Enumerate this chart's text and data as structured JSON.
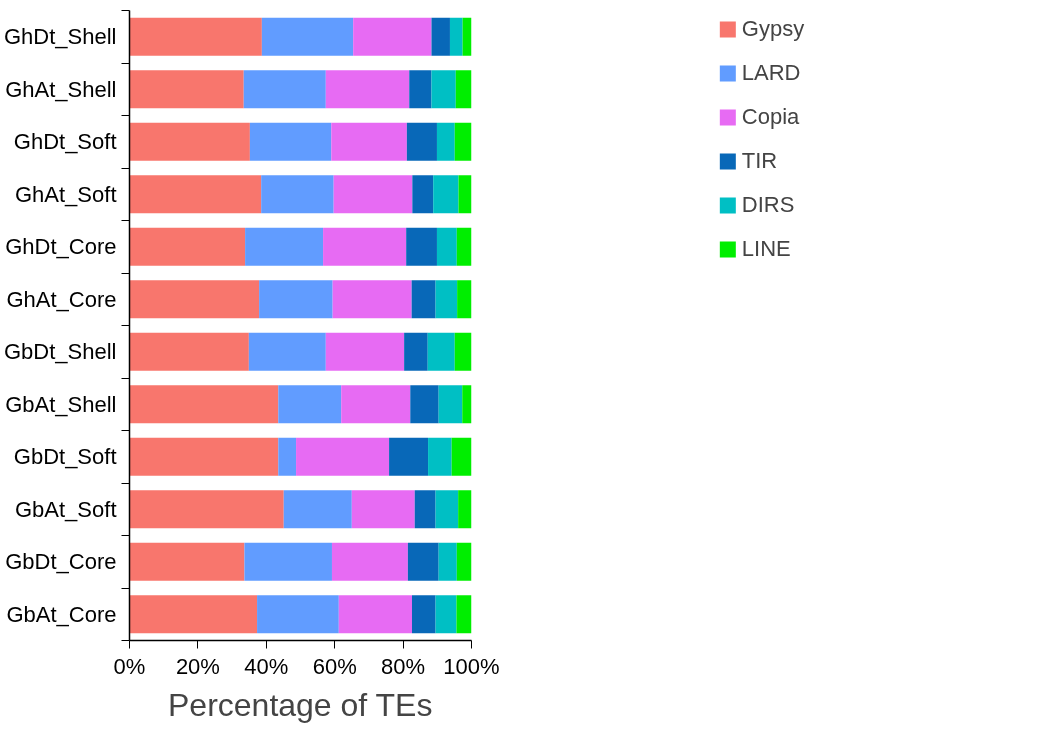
{
  "chart_data": {
    "type": "bar",
    "orientation": "horizontal",
    "stacked": true,
    "xlabel": "Percentage of TEs",
    "categories": [
      "GhDt_Shell",
      "GhAt_Shell",
      "GhDt_Soft",
      "GhAt_Soft",
      "GhDt_Core",
      "GhAt_Core",
      "GbDt_Shell",
      "GbAt_Shell",
      "GbDt_Soft",
      "GbAt_Soft",
      "GbDt_Core",
      "GbAt_Core"
    ],
    "series": [
      {
        "name": "Gypsy",
        "color": "#f8766d",
        "values": [
          38.7,
          33.4,
          35.2,
          38.5,
          33.8,
          37.9,
          34.9,
          43.5,
          43.5,
          45.1,
          33.6,
          37.3
        ]
      },
      {
        "name": "LARD",
        "color": "#619cff",
        "values": [
          26.7,
          24.0,
          23.8,
          21.2,
          22.8,
          21.5,
          22.5,
          18.4,
          5.2,
          19.9,
          25.6,
          23.9
        ]
      },
      {
        "name": "Copia",
        "color": "#e76bf3",
        "values": [
          22.9,
          24.4,
          22.1,
          23.0,
          24.3,
          23.1,
          22.9,
          20.2,
          27.2,
          18.4,
          22.2,
          21.4
        ]
      },
      {
        "name": "TIR",
        "color": "#0868b8",
        "values": [
          5.4,
          6.5,
          8.8,
          6.1,
          9.0,
          7.0,
          6.9,
          8.3,
          11.4,
          6.1,
          9.0,
          6.9
        ]
      },
      {
        "name": "DIRS",
        "color": "#00bfc4",
        "values": [
          3.7,
          7.1,
          5.2,
          7.4,
          5.8,
          6.3,
          7.9,
          6.9,
          6.9,
          6.6,
          5.3,
          6.1
        ]
      },
      {
        "name": "LINE",
        "color": "#00ee00",
        "values": [
          2.6,
          4.6,
          4.9,
          3.8,
          4.3,
          4.2,
          4.9,
          2.7,
          5.8,
          3.9,
          4.3,
          4.4
        ]
      }
    ],
    "xlim": [
      0,
      100
    ],
    "xticks": [
      {
        "value": 0,
        "label": "0%"
      },
      {
        "value": 20,
        "label": "20%"
      },
      {
        "value": 40,
        "label": "40%"
      },
      {
        "value": 60,
        "label": "60%"
      },
      {
        "value": 80,
        "label": "80%"
      },
      {
        "value": 100,
        "label": "100%"
      }
    ],
    "grid": false,
    "legend": "top right"
  }
}
